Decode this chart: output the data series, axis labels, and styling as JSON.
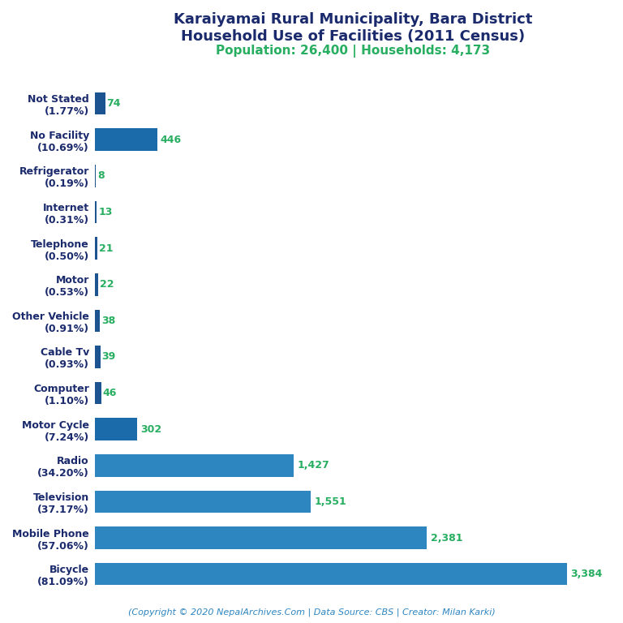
{
  "title_line1": "Karaiyamai Rural Municipality, Bara District",
  "title_line2": "Household Use of Facilities (2011 Census)",
  "subtitle": "Population: 26,400 | Households: 4,173",
  "categories": [
    "Not Stated\n(1.77%)",
    "No Facility\n(10.69%)",
    "Refrigerator\n(0.19%)",
    "Internet\n(0.31%)",
    "Telephone\n(0.50%)",
    "Motor\n(0.53%)",
    "Other Vehicle\n(0.91%)",
    "Cable Tv\n(0.93%)",
    "Computer\n(1.10%)",
    "Motor Cycle\n(7.24%)",
    "Radio\n(34.20%)",
    "Television\n(37.17%)",
    "Mobile Phone\n(57.06%)",
    "Bicycle\n(81.09%)"
  ],
  "values": [
    74,
    446,
    8,
    13,
    21,
    22,
    38,
    39,
    46,
    302,
    1427,
    1551,
    2381,
    3384
  ],
  "value_labels": [
    "74",
    "446",
    "8",
    "13",
    "21",
    "22",
    "38",
    "39",
    "46",
    "302",
    "1,427",
    "1,551",
    "2,381",
    "3,384"
  ],
  "bar_colors": [
    "#1b5490",
    "#1b6aaa",
    "#1b5490",
    "#1b5490",
    "#1b5490",
    "#1b5490",
    "#1b5490",
    "#1b5490",
    "#1b5490",
    "#1b6aaa",
    "#2e86c1",
    "#2e86c1",
    "#2e86c1",
    "#2e86c1"
  ],
  "title_color": "#1a2a6c",
  "subtitle_color": "#27ae60",
  "value_color": "#27ae60",
  "label_color": "#1a2a6c",
  "footer_text": "(Copyright © 2020 NepalArchives.Com | Data Source: CBS | Creator: Milan Karki)",
  "footer_color": "#2e86c1",
  "background_color": "#ffffff",
  "xlim": [
    0,
    3700
  ]
}
